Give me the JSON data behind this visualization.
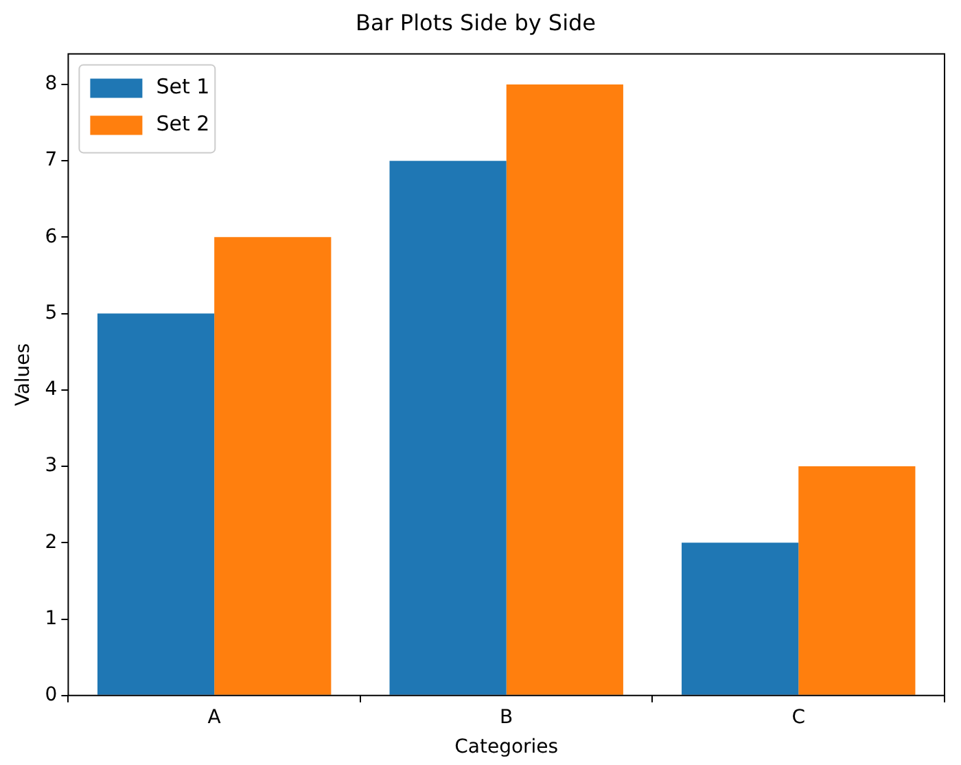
{
  "chart_data": {
    "type": "bar",
    "title": "Bar Plots Side by Side",
    "xlabel": "Categories",
    "ylabel": "Values",
    "categories": [
      "A",
      "B",
      "C"
    ],
    "series": [
      {
        "name": "Set 1",
        "color": "#1f77b4",
        "values": [
          5,
          7,
          2
        ]
      },
      {
        "name": "Set 2",
        "color": "#ff7f0e",
        "values": [
          6,
          8,
          3
        ]
      }
    ],
    "ylim": [
      0,
      8.4
    ],
    "yticks": [
      0,
      1,
      2,
      3,
      4,
      5,
      6,
      7,
      8
    ],
    "legend": "top left"
  }
}
